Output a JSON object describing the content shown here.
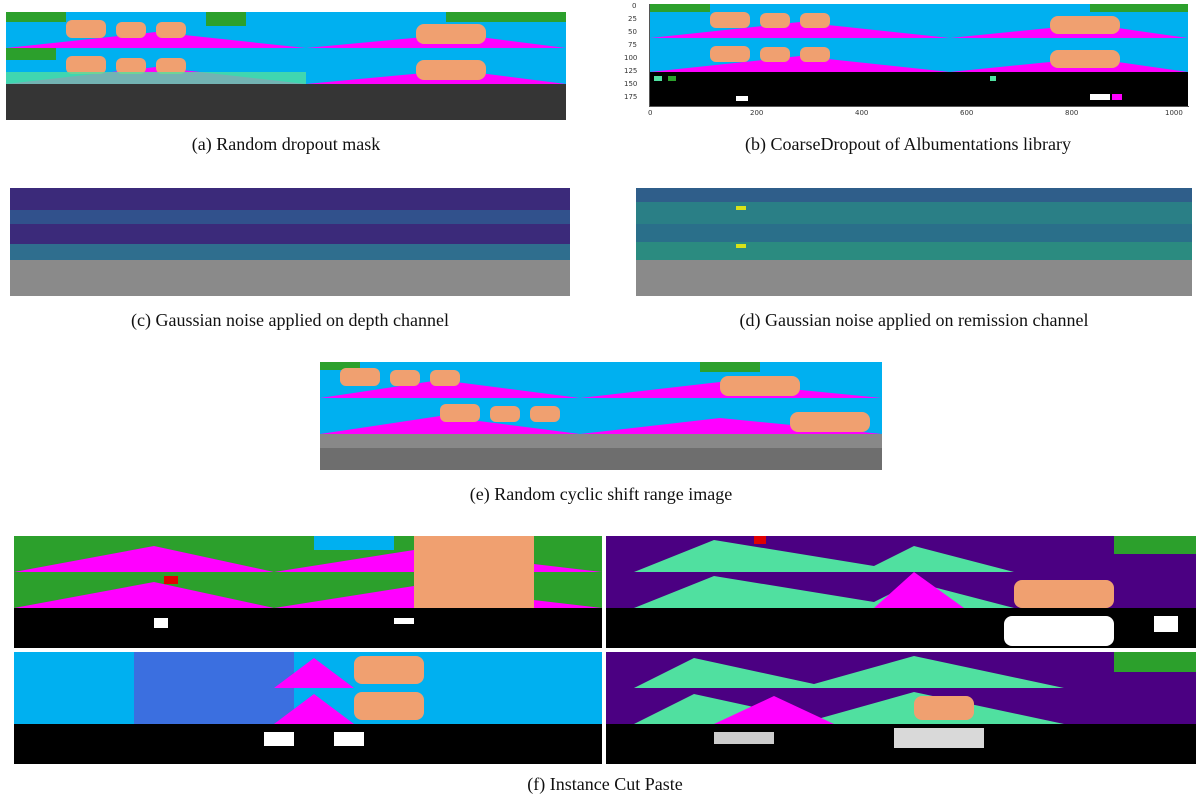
{
  "figure": {
    "panels": [
      {
        "id": "a",
        "caption": "(a) Random dropout mask"
      },
      {
        "id": "b",
        "caption": "(b) CoarseDropout of Albumentations library"
      },
      {
        "id": "c",
        "caption": "(c) Gaussian noise applied on depth channel"
      },
      {
        "id": "d",
        "caption": "(d) Gaussian noise applied on remission channel"
      },
      {
        "id": "e",
        "caption": "(e) Random cyclic shift range image"
      },
      {
        "id": "f",
        "caption": "(f) Instance Cut Paste"
      }
    ],
    "panel_b_axis": {
      "y_ticks": [
        "0",
        "25",
        "50",
        "75",
        "100",
        "125",
        "150",
        "175"
      ],
      "x_ticks": [
        "0",
        "200",
        "400",
        "600",
        "800",
        "1000"
      ]
    },
    "colors": {
      "car": "#f0a070",
      "road": "#ff00ff",
      "vegetation": "#2ca02c",
      "building": "#00b0f0",
      "sidewalk": "#4b0082",
      "terrain": "#50e0a0",
      "pole": "#1f3c8f",
      "sky_black": "#000000"
    }
  }
}
